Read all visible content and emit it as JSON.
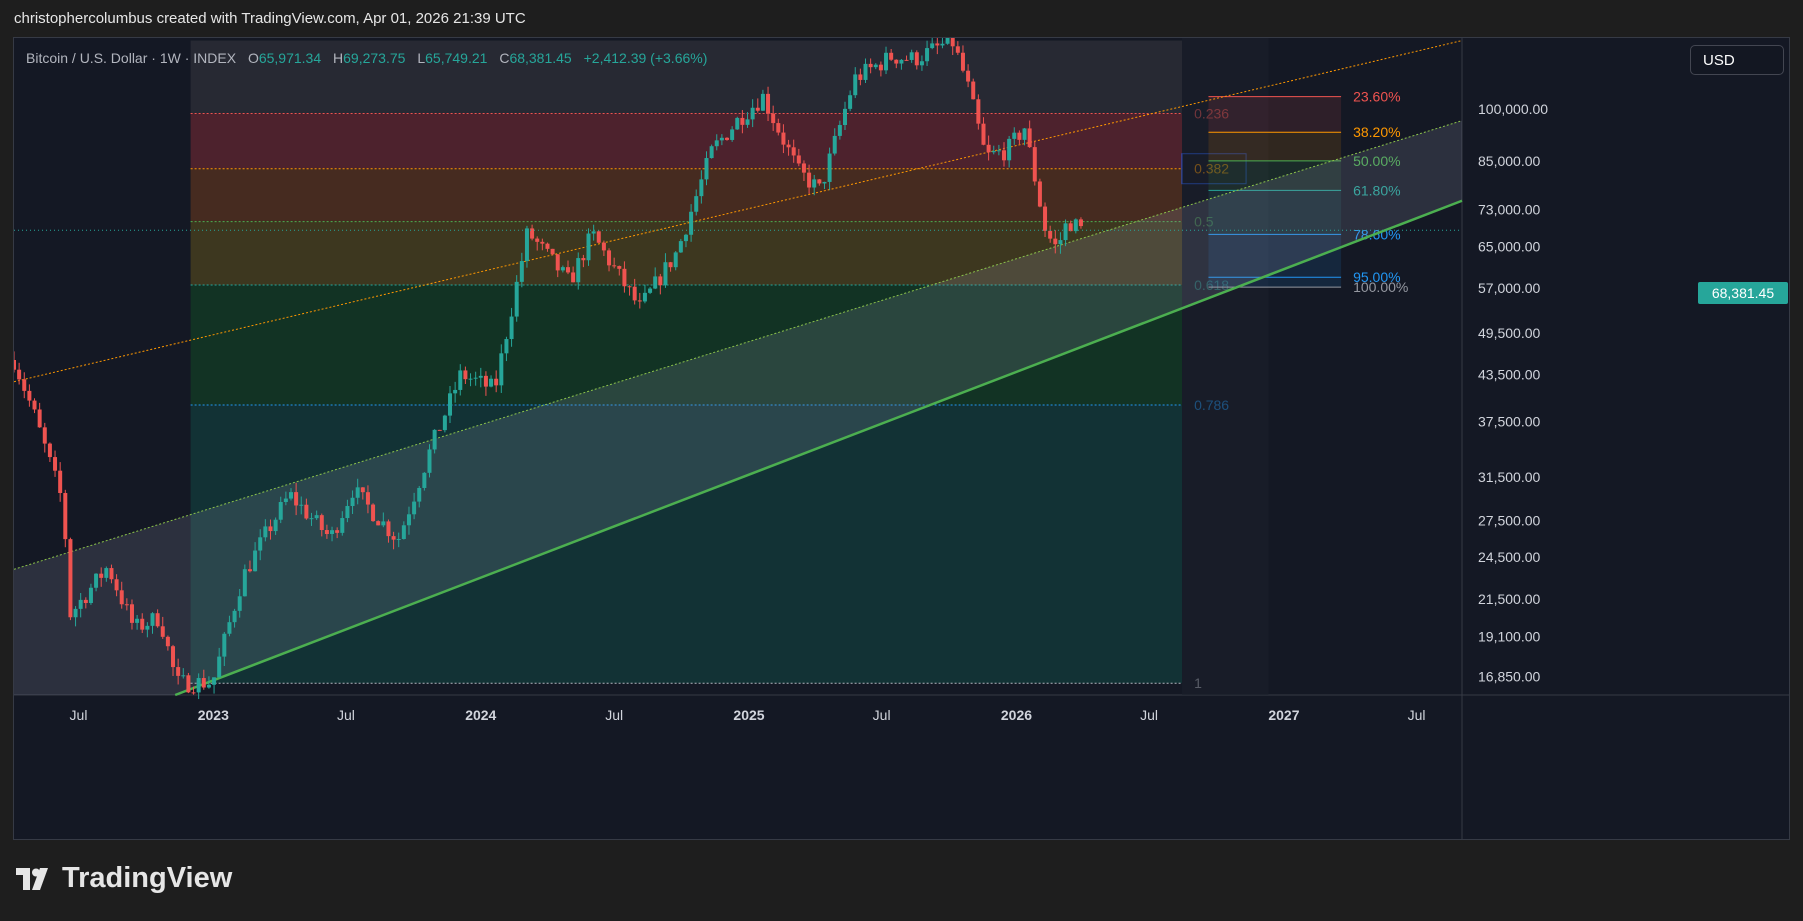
{
  "header": {
    "caption": "christophercolumbus created with TradingView.com, Apr 01, 2026 21:39 UTC"
  },
  "legend": {
    "symbol": "Bitcoin / U.S. Dollar · 1W · INDEX",
    "open_label": "O",
    "open": "65,971.34",
    "high_label": "H",
    "high": "69,273.75",
    "low_label": "L",
    "low": "65,749.21",
    "close_label": "C",
    "close": "68,381.45",
    "change": "+2,412.39 (+3.66%)"
  },
  "currency": "USD",
  "last_price": "68,381.45",
  "brand": {
    "name": "TradingView",
    "logo_icon": "tradingview-logo-icon"
  },
  "colors": {
    "up": "#26a69a",
    "down": "#ef5350",
    "channel": "#4caf50",
    "background": "#141824"
  },
  "chart_data": {
    "type": "candlestick",
    "symbol": "BTCUSD",
    "interval": "1W",
    "y_scale": "log",
    "ylim": [
      15900,
      125000
    ],
    "xlim": [
      "2022-04-04",
      "2027-09-01"
    ],
    "y_ticks": [
      "100,000.00",
      "85,000.00",
      "73,000.00",
      "65,000.00",
      "57,000.00",
      "49,500.00",
      "43,500.00",
      "37,500.00",
      "31,500.00",
      "27,500.00",
      "24,500.00",
      "21,500.00",
      "19,100.00",
      "16,850.00"
    ],
    "y_tick_values": [
      100000,
      85000,
      73000,
      65000,
      57000,
      49500,
      43500,
      37500,
      31500,
      27500,
      24500,
      21500,
      19100,
      16850
    ],
    "x_ticks": [
      {
        "label": "Jul",
        "date": "2022-07-01"
      },
      {
        "label": "2023",
        "date": "2023-01-01"
      },
      {
        "label": "Jul",
        "date": "2023-07-01"
      },
      {
        "label": "2024",
        "date": "2024-01-01"
      },
      {
        "label": "Jul",
        "date": "2024-07-01"
      },
      {
        "label": "2025",
        "date": "2025-01-01"
      },
      {
        "label": "Jul",
        "date": "2025-07-01"
      },
      {
        "label": "2026",
        "date": "2026-01-01"
      },
      {
        "label": "Jul",
        "date": "2026-07-01"
      },
      {
        "label": "2027",
        "date": "2027-01-01"
      },
      {
        "label": "Jul",
        "date": "2027-07-01"
      }
    ],
    "price_path": [
      [
        "2022-04-04",
        45500
      ],
      [
        "2022-05-01",
        38500
      ],
      [
        "2022-06-10",
        29000
      ],
      [
        "2022-06-20",
        20500
      ],
      [
        "2022-08-10",
        23800
      ],
      [
        "2022-09-15",
        19600
      ],
      [
        "2022-10-20",
        20300
      ],
      [
        "2022-11-12",
        16500
      ],
      [
        "2022-12-31",
        16550
      ],
      [
        "2023-02-10",
        23000
      ],
      [
        "2023-03-15",
        26500
      ],
      [
        "2023-04-15",
        29800
      ],
      [
        "2023-06-10",
        26000
      ],
      [
        "2023-07-10",
        30300
      ],
      [
        "2023-09-10",
        25900
      ],
      [
        "2023-10-25",
        34500
      ],
      [
        "2023-12-05",
        43500
      ],
      [
        "2024-01-20",
        41500
      ],
      [
        "2024-03-05",
        68000
      ],
      [
        "2024-05-01",
        58000
      ],
      [
        "2024-06-01",
        67500
      ],
      [
        "2024-08-05",
        53500
      ],
      [
        "2024-09-25",
        64000
      ],
      [
        "2024-11-12",
        88000
      ],
      [
        "2024-12-20",
        97500
      ],
      [
        "2025-01-20",
        104000
      ],
      [
        "2025-03-10",
        82000
      ],
      [
        "2025-04-08",
        77500
      ],
      [
        "2025-05-25",
        110000
      ],
      [
        "2025-07-15",
        118000
      ],
      [
        "2025-08-15",
        117000
      ],
      [
        "2025-10-05",
        124000
      ],
      [
        "2025-10-25",
        109000
      ],
      [
        "2025-11-20",
        86000
      ],
      [
        "2025-12-20",
        88000
      ],
      [
        "2026-01-12",
        94500
      ],
      [
        "2026-02-10",
        68000
      ],
      [
        "2026-02-25",
        64500
      ],
      [
        "2026-03-12",
        70500
      ],
      [
        "2026-04-01",
        68381
      ]
    ],
    "channel": {
      "lower": [
        [
          "2022-11-10",
          15900
        ],
        [
          "2027-09-01",
          75000
        ]
      ],
      "upper": [
        [
          "2022-04-04",
          42500
        ],
        [
          "2027-09-01",
          124000
        ]
      ]
    },
    "fib_retracement": {
      "high": 124000,
      "low": 16500,
      "x_start": "2022-12-01",
      "x_end": "2026-08-15",
      "levels": [
        {
          "label": "0.236",
          "ratio": 0.236,
          "color": "#ef5350"
        },
        {
          "label": "0.382",
          "ratio": 0.382,
          "color": "#ff9800"
        },
        {
          "label": "0.5",
          "ratio": 0.5,
          "color": "#4caf50"
        },
        {
          "label": "0.618",
          "ratio": 0.618,
          "color": "#26a69a"
        },
        {
          "label": "0.786",
          "ratio": 0.786,
          "color": "#2196f3"
        },
        {
          "label": "1",
          "ratio": 1,
          "color": "#b2b5be"
        }
      ]
    },
    "fib_extension": {
      "x_start": "2026-09-20",
      "x_end": "2027-03-20",
      "levels": [
        {
          "label": "23.60%",
          "price": 104000,
          "color": "#ef5350"
        },
        {
          "label": "38.20%",
          "price": 93000,
          "color": "#ff9800"
        },
        {
          "label": "50.00%",
          "price": 85000,
          "color": "#4caf50"
        },
        {
          "label": "61.80%",
          "price": 77500,
          "color": "#26a69a"
        },
        {
          "label": "78.60%",
          "price": 67500,
          "color": "#2196f3"
        },
        {
          "label": "95.00%",
          "price": 59000,
          "color": "#2196f3"
        },
        {
          "label": "100.00%",
          "price": 57200,
          "color": "#9598a1"
        }
      ]
    }
  }
}
